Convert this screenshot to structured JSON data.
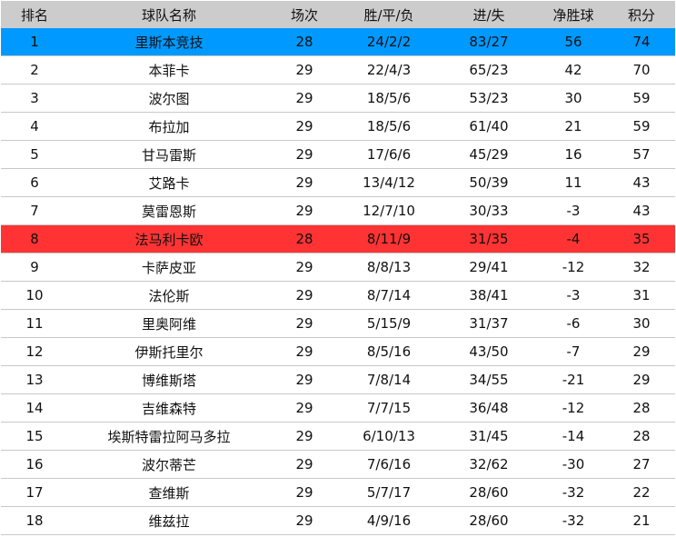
{
  "colors": {
    "header": "#cccccc",
    "first_place": "#0099ff",
    "highlight": "#ff3333"
  },
  "headers": [
    "排名",
    "球队名称",
    "场次",
    "胜/平/负",
    "进/失",
    "净胜球",
    "积分"
  ],
  "rows": [
    [
      "1",
      "里斯本竞技",
      "28",
      "24/2/2",
      "83/27",
      "56",
      "74"
    ],
    [
      "2",
      "本菲卡",
      "29",
      "22/4/3",
      "65/23",
      "42",
      "70"
    ],
    [
      "3",
      "波尔图",
      "29",
      "18/5/6",
      "53/23",
      "30",
      "59"
    ],
    [
      "4",
      "布拉加",
      "29",
      "18/5/6",
      "61/40",
      "21",
      "59"
    ],
    [
      "5",
      "甘马雷斯",
      "29",
      "17/6/6",
      "45/29",
      "16",
      "57"
    ],
    [
      "6",
      "艾路卡",
      "29",
      "13/4/12",
      "50/39",
      "11",
      "43"
    ],
    [
      "7",
      "莫雷恩斯",
      "29",
      "12/7/10",
      "30/33",
      "-3",
      "43"
    ],
    [
      "8",
      "法马利卡欧",
      "28",
      "8/11/9",
      "31/35",
      "-4",
      "35"
    ],
    [
      "9",
      "卡萨皮亚",
      "29",
      "8/8/13",
      "29/41",
      "-12",
      "32"
    ],
    [
      "10",
      "法伦斯",
      "29",
      "8/7/14",
      "38/41",
      "-3",
      "31"
    ],
    [
      "11",
      "里奥阿维",
      "29",
      "5/15/9",
      "31/37",
      "-6",
      "30"
    ],
    [
      "12",
      "伊斯托里尔",
      "29",
      "8/5/16",
      "43/50",
      "-7",
      "29"
    ],
    [
      "13",
      "博维斯塔",
      "29",
      "7/8/14",
      "34/55",
      "-21",
      "29"
    ],
    [
      "14",
      "吉维森特",
      "29",
      "7/7/15",
      "36/48",
      "-12",
      "28"
    ],
    [
      "15",
      "埃斯特雷拉阿马多拉",
      "29",
      "6/10/13",
      "31/45",
      "-14",
      "28"
    ],
    [
      "16",
      "波尔蒂芒",
      "29",
      "7/6/16",
      "32/62",
      "-30",
      "27"
    ],
    [
      "17",
      "查维斯",
      "29",
      "5/7/17",
      "28/60",
      "-32",
      "22"
    ],
    [
      "18",
      "维兹拉",
      "29",
      "4/9/16",
      "28/60",
      "-32",
      "21"
    ]
  ]
}
